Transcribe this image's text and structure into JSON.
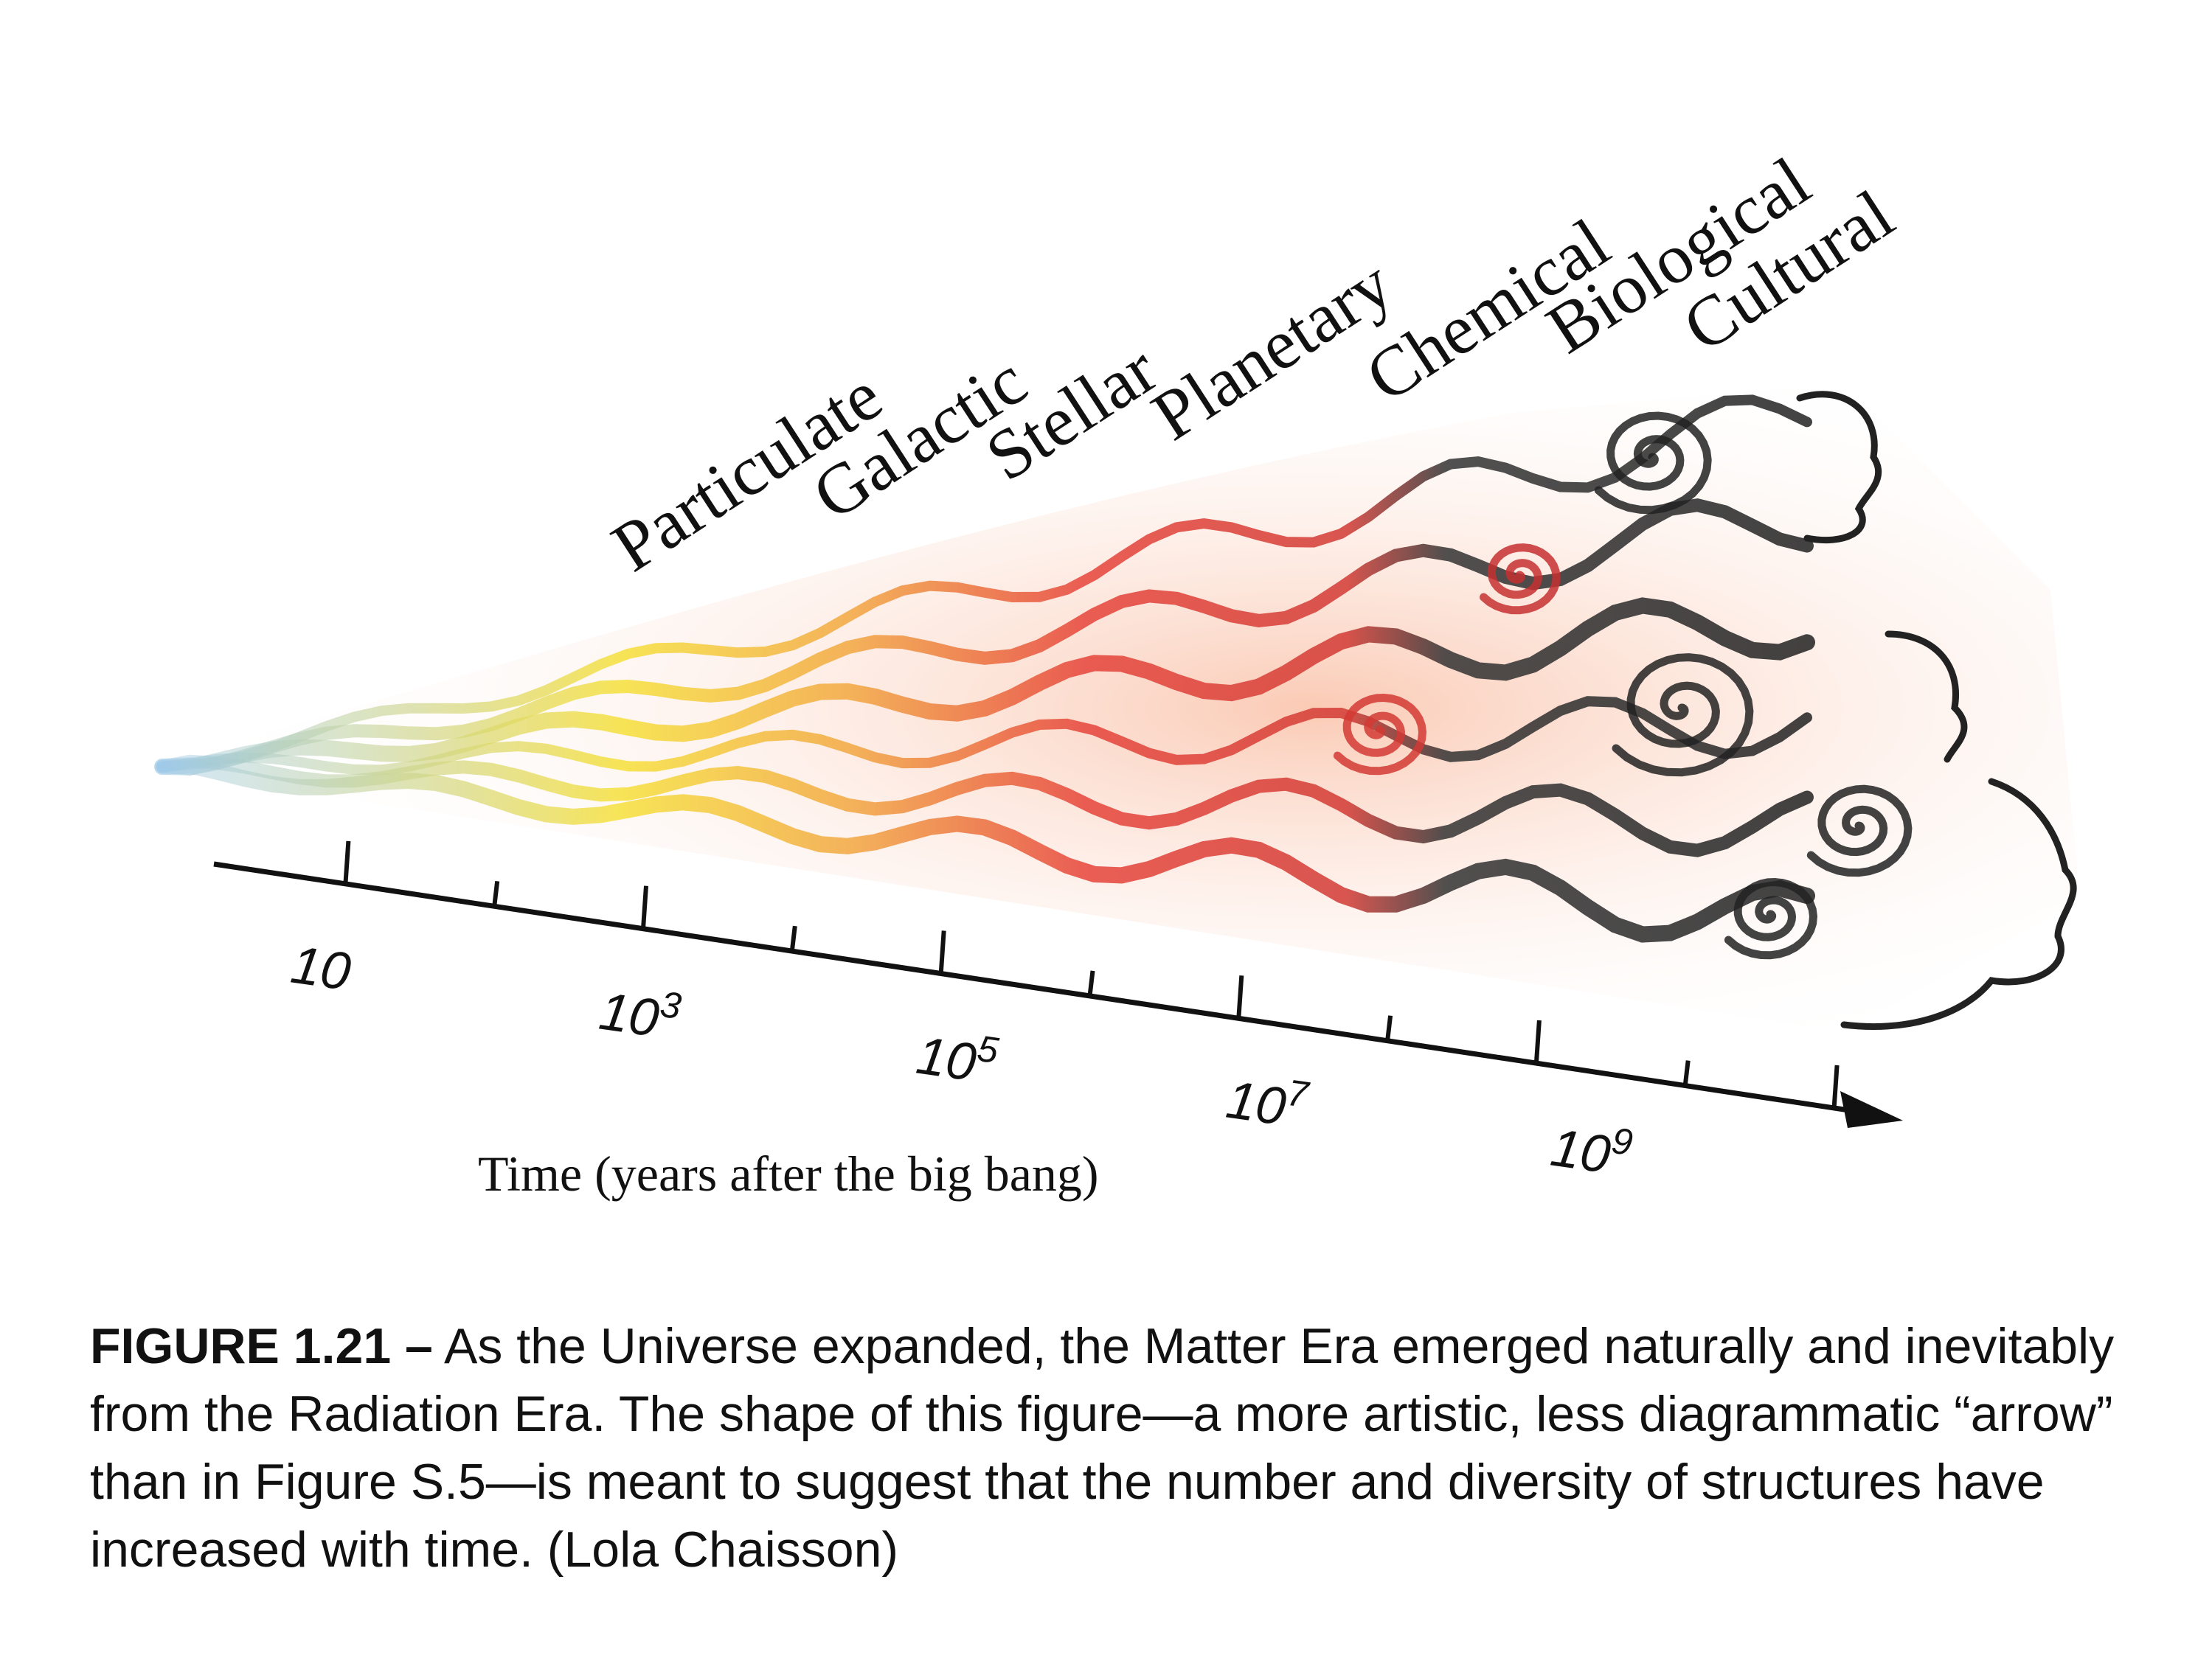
{
  "figure": {
    "era_labels": [
      "Particulate",
      "Galactic",
      "Stellar",
      "Planetary",
      "Chemical",
      "Biological",
      "Cultural"
    ],
    "axis": {
      "title": "Time (years after the big bang)",
      "tick_labels": [
        {
          "base": "10",
          "exp": ""
        },
        {
          "base": "10",
          "exp": "3"
        },
        {
          "base": "10",
          "exp": "5"
        },
        {
          "base": "10",
          "exp": "7"
        },
        {
          "base": "10",
          "exp": "9"
        }
      ]
    },
    "colors": {
      "radiation": "#9cc8e8",
      "yellow": "#f6e03a",
      "orange": "#f2a640",
      "red": "#e6443a",
      "dark": "#222222"
    }
  },
  "caption": {
    "figure_id": "FIGURE 1.21 –",
    "text": " As the Universe expanded, the Matter Era emerged naturally and inevitably from the Radiation Era. The shape of this figure—a more artistic, less diagrammatic “arrow” than in Figure S.5—is meant to suggest that the number and diversity of structures have increased with time. (Lola Chaisson)"
  }
}
